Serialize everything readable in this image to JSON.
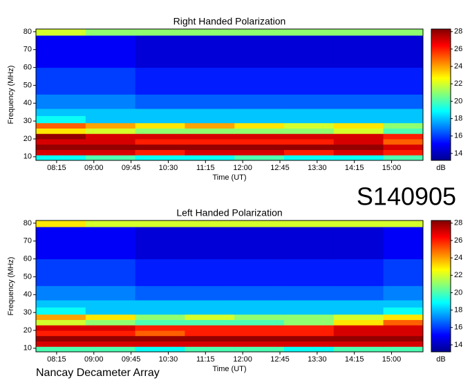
{
  "chart_data": [
    {
      "type": "heatmap",
      "title": "Right Handed Polarization",
      "xlabel": "Time (UT)",
      "ylabel": "Frequency (MHz)",
      "zlabel": "dB",
      "colormap": "jet",
      "xlim": [
        470,
        938
      ],
      "xticks": [
        {
          "value": 495,
          "label": "08:15"
        },
        {
          "value": 540,
          "label": "09:00"
        },
        {
          "value": 585,
          "label": "09:45"
        },
        {
          "value": 630,
          "label": "10:30"
        },
        {
          "value": 675,
          "label": "11:15"
        },
        {
          "value": 720,
          "label": "12:00"
        },
        {
          "value": 765,
          "label": "12:45"
        },
        {
          "value": 810,
          "label": "13:30"
        },
        {
          "value": 855,
          "label": "14:15"
        },
        {
          "value": 900,
          "label": "15:00"
        }
      ],
      "ylim": [
        8,
        81.5
      ],
      "yticks": [
        10,
        20,
        30,
        40,
        50,
        60,
        70,
        80
      ],
      "zlim": [
        13.2,
        28.3
      ],
      "zticks": [
        14,
        16,
        18,
        20,
        22,
        24,
        26,
        28
      ],
      "x_bins": [
        470,
        530,
        590,
        650,
        710,
        770,
        830,
        890,
        938
      ],
      "y_bins": [
        8,
        11,
        14,
        17,
        20,
        23,
        26,
        29,
        33,
        37,
        45,
        60,
        78,
        81.5
      ],
      "z": [
        [
          19,
          20,
          19,
          19,
          20,
          19,
          19,
          20
        ],
        [
          27,
          27,
          26,
          27,
          27,
          26,
          27,
          26
        ],
        [
          28,
          28,
          28,
          28,
          28,
          28,
          28,
          27
        ],
        [
          27,
          27,
          26,
          26,
          26,
          26,
          27,
          25
        ],
        [
          28,
          27,
          27,
          27,
          27,
          27,
          27,
          26
        ],
        [
          23,
          22,
          21,
          21,
          21,
          21,
          22,
          20
        ],
        [
          25,
          24,
          23,
          24,
          23,
          22,
          23,
          21
        ],
        [
          19,
          18,
          18,
          18,
          18,
          18,
          18,
          18
        ],
        [
          18,
          18,
          18,
          18,
          18,
          18,
          18,
          18
        ],
        [
          17,
          17,
          16.5,
          16.5,
          16.5,
          16.5,
          16.5,
          16.5
        ],
        [
          16,
          16,
          15.5,
          15.5,
          15.5,
          15.5,
          15.5,
          15.5
        ],
        [
          15,
          15,
          14.5,
          14.5,
          14.5,
          14.5,
          14.5,
          14.5
        ],
        [
          22,
          21,
          21,
          21,
          21,
          21,
          21,
          21
        ]
      ]
    },
    {
      "type": "heatmap",
      "title": "Left Handed Polarization",
      "xlabel": "Time (UT)",
      "ylabel": "Frequency (MHz)",
      "zlabel": "dB",
      "colormap": "jet",
      "xlim": [
        470,
        938
      ],
      "xticks": [
        {
          "value": 495,
          "label": "08:15"
        },
        {
          "value": 540,
          "label": "09:00"
        },
        {
          "value": 585,
          "label": "09:45"
        },
        {
          "value": 630,
          "label": "10:30"
        },
        {
          "value": 675,
          "label": "11:15"
        },
        {
          "value": 720,
          "label": "12:00"
        },
        {
          "value": 765,
          "label": "12:45"
        },
        {
          "value": 810,
          "label": "13:30"
        },
        {
          "value": 855,
          "label": "14:15"
        },
        {
          "value": 900,
          "label": "15:00"
        }
      ],
      "ylim": [
        8,
        81.5
      ],
      "yticks": [
        10,
        20,
        30,
        40,
        50,
        60,
        70,
        80
      ],
      "zlim": [
        13.2,
        28.3
      ],
      "zticks": [
        14,
        16,
        18,
        20,
        22,
        24,
        26,
        28
      ],
      "x_bins": [
        470,
        530,
        590,
        650,
        710,
        770,
        830,
        890,
        938
      ],
      "y_bins": [
        8,
        11,
        14,
        17,
        20,
        23,
        26,
        29,
        33,
        37,
        45,
        60,
        78,
        81.5
      ],
      "z": [
        [
          20,
          20,
          19,
          20,
          20,
          19,
          20,
          20
        ],
        [
          27,
          27,
          27,
          27,
          27,
          27,
          27,
          27
        ],
        [
          28,
          28,
          28,
          28,
          28,
          28,
          28,
          28
        ],
        [
          26,
          26,
          25,
          26,
          26,
          26,
          27,
          27
        ],
        [
          27,
          27,
          26,
          26,
          26,
          26,
          27,
          27
        ],
        [
          22,
          21,
          20,
          20,
          20,
          21,
          23,
          25
        ],
        [
          24,
          23,
          21,
          22,
          21,
          21,
          22,
          23
        ],
        [
          19,
          18,
          18,
          18,
          18,
          18,
          18,
          19
        ],
        [
          18,
          18,
          18,
          18,
          18,
          18,
          18,
          18
        ],
        [
          17,
          17,
          16.5,
          16.5,
          16.5,
          16.5,
          16.5,
          17
        ],
        [
          16,
          16,
          15.5,
          15.5,
          15.5,
          15.5,
          15.5,
          16
        ],
        [
          15,
          15,
          14.5,
          14.5,
          14.5,
          14.5,
          14.5,
          15
        ],
        [
          23,
          22,
          22,
          22,
          22,
          22,
          22,
          22
        ]
      ]
    }
  ],
  "label": "S140905",
  "footer": "Nancay Decameter Array"
}
